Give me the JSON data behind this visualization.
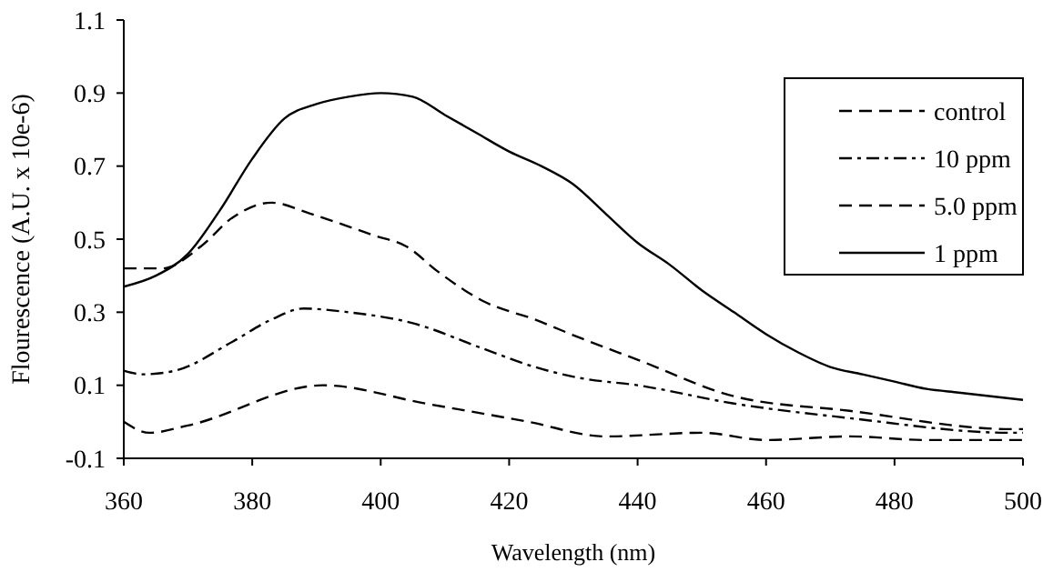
{
  "chart_data": {
    "type": "line",
    "xlabel": "Wavelength (nm)",
    "ylabel": "Flourescence (A.U. x 10e-6)",
    "xlim": [
      360,
      500
    ],
    "xticks": [
      360,
      380,
      400,
      420,
      440,
      460,
      480,
      500
    ],
    "ylim": [
      -0.1,
      1.1
    ],
    "yticks": [
      -0.1,
      0.1,
      0.3,
      0.5,
      0.7,
      0.9,
      1.1
    ],
    "grid": false,
    "legend": "top right",
    "marker": "none",
    "series": [
      {
        "name": "control",
        "color": "#000000",
        "line_style": "dashed",
        "x": [
          360,
          364,
          370,
          391,
          407,
          423,
          435,
          450,
          460,
          473,
          485,
          495,
          500
        ],
        "values": [
          0.0,
          -0.03,
          -0.01,
          0.1,
          0.05,
          0.0,
          -0.04,
          -0.03,
          -0.05,
          -0.04,
          -0.05,
          -0.05,
          -0.05
        ]
      },
      {
        "name": "10 ppm",
        "color": "#000000",
        "line_style": "dashdot",
        "x": [
          360,
          363,
          368,
          377,
          383,
          388,
          395,
          405,
          416,
          424,
          431,
          440,
          455,
          473,
          498,
          500
        ],
        "values": [
          0.14,
          0.13,
          0.14,
          0.22,
          0.28,
          0.31,
          0.3,
          0.27,
          0.2,
          0.15,
          0.12,
          0.1,
          0.05,
          0.01,
          -0.03,
          -0.03
        ]
      },
      {
        "name": "5.0 ppm",
        "color": "#000000",
        "line_style": "dashed",
        "x": [
          360,
          366,
          372,
          377,
          383,
          389,
          399,
          404,
          409,
          416,
          424,
          431,
          440,
          455,
          473,
          498,
          500
        ],
        "values": [
          0.42,
          0.42,
          0.48,
          0.56,
          0.6,
          0.57,
          0.51,
          0.48,
          0.41,
          0.33,
          0.28,
          0.23,
          0.17,
          0.07,
          0.03,
          -0.02,
          -0.02
        ]
      },
      {
        "name": "1 ppm",
        "color": "#000000",
        "line_style": "solid",
        "x": [
          360,
          365,
          370,
          375,
          380,
          385,
          390,
          395,
          400,
          405,
          410,
          415,
          420,
          425,
          430,
          435,
          440,
          445,
          450,
          455,
          460,
          465,
          470,
          475,
          480,
          485,
          490,
          495,
          500
        ],
        "values": [
          0.37,
          0.4,
          0.46,
          0.58,
          0.72,
          0.83,
          0.87,
          0.89,
          0.9,
          0.89,
          0.84,
          0.79,
          0.74,
          0.7,
          0.65,
          0.57,
          0.49,
          0.43,
          0.36,
          0.3,
          0.24,
          0.19,
          0.15,
          0.13,
          0.11,
          0.09,
          0.08,
          0.07,
          0.06
        ]
      }
    ]
  }
}
